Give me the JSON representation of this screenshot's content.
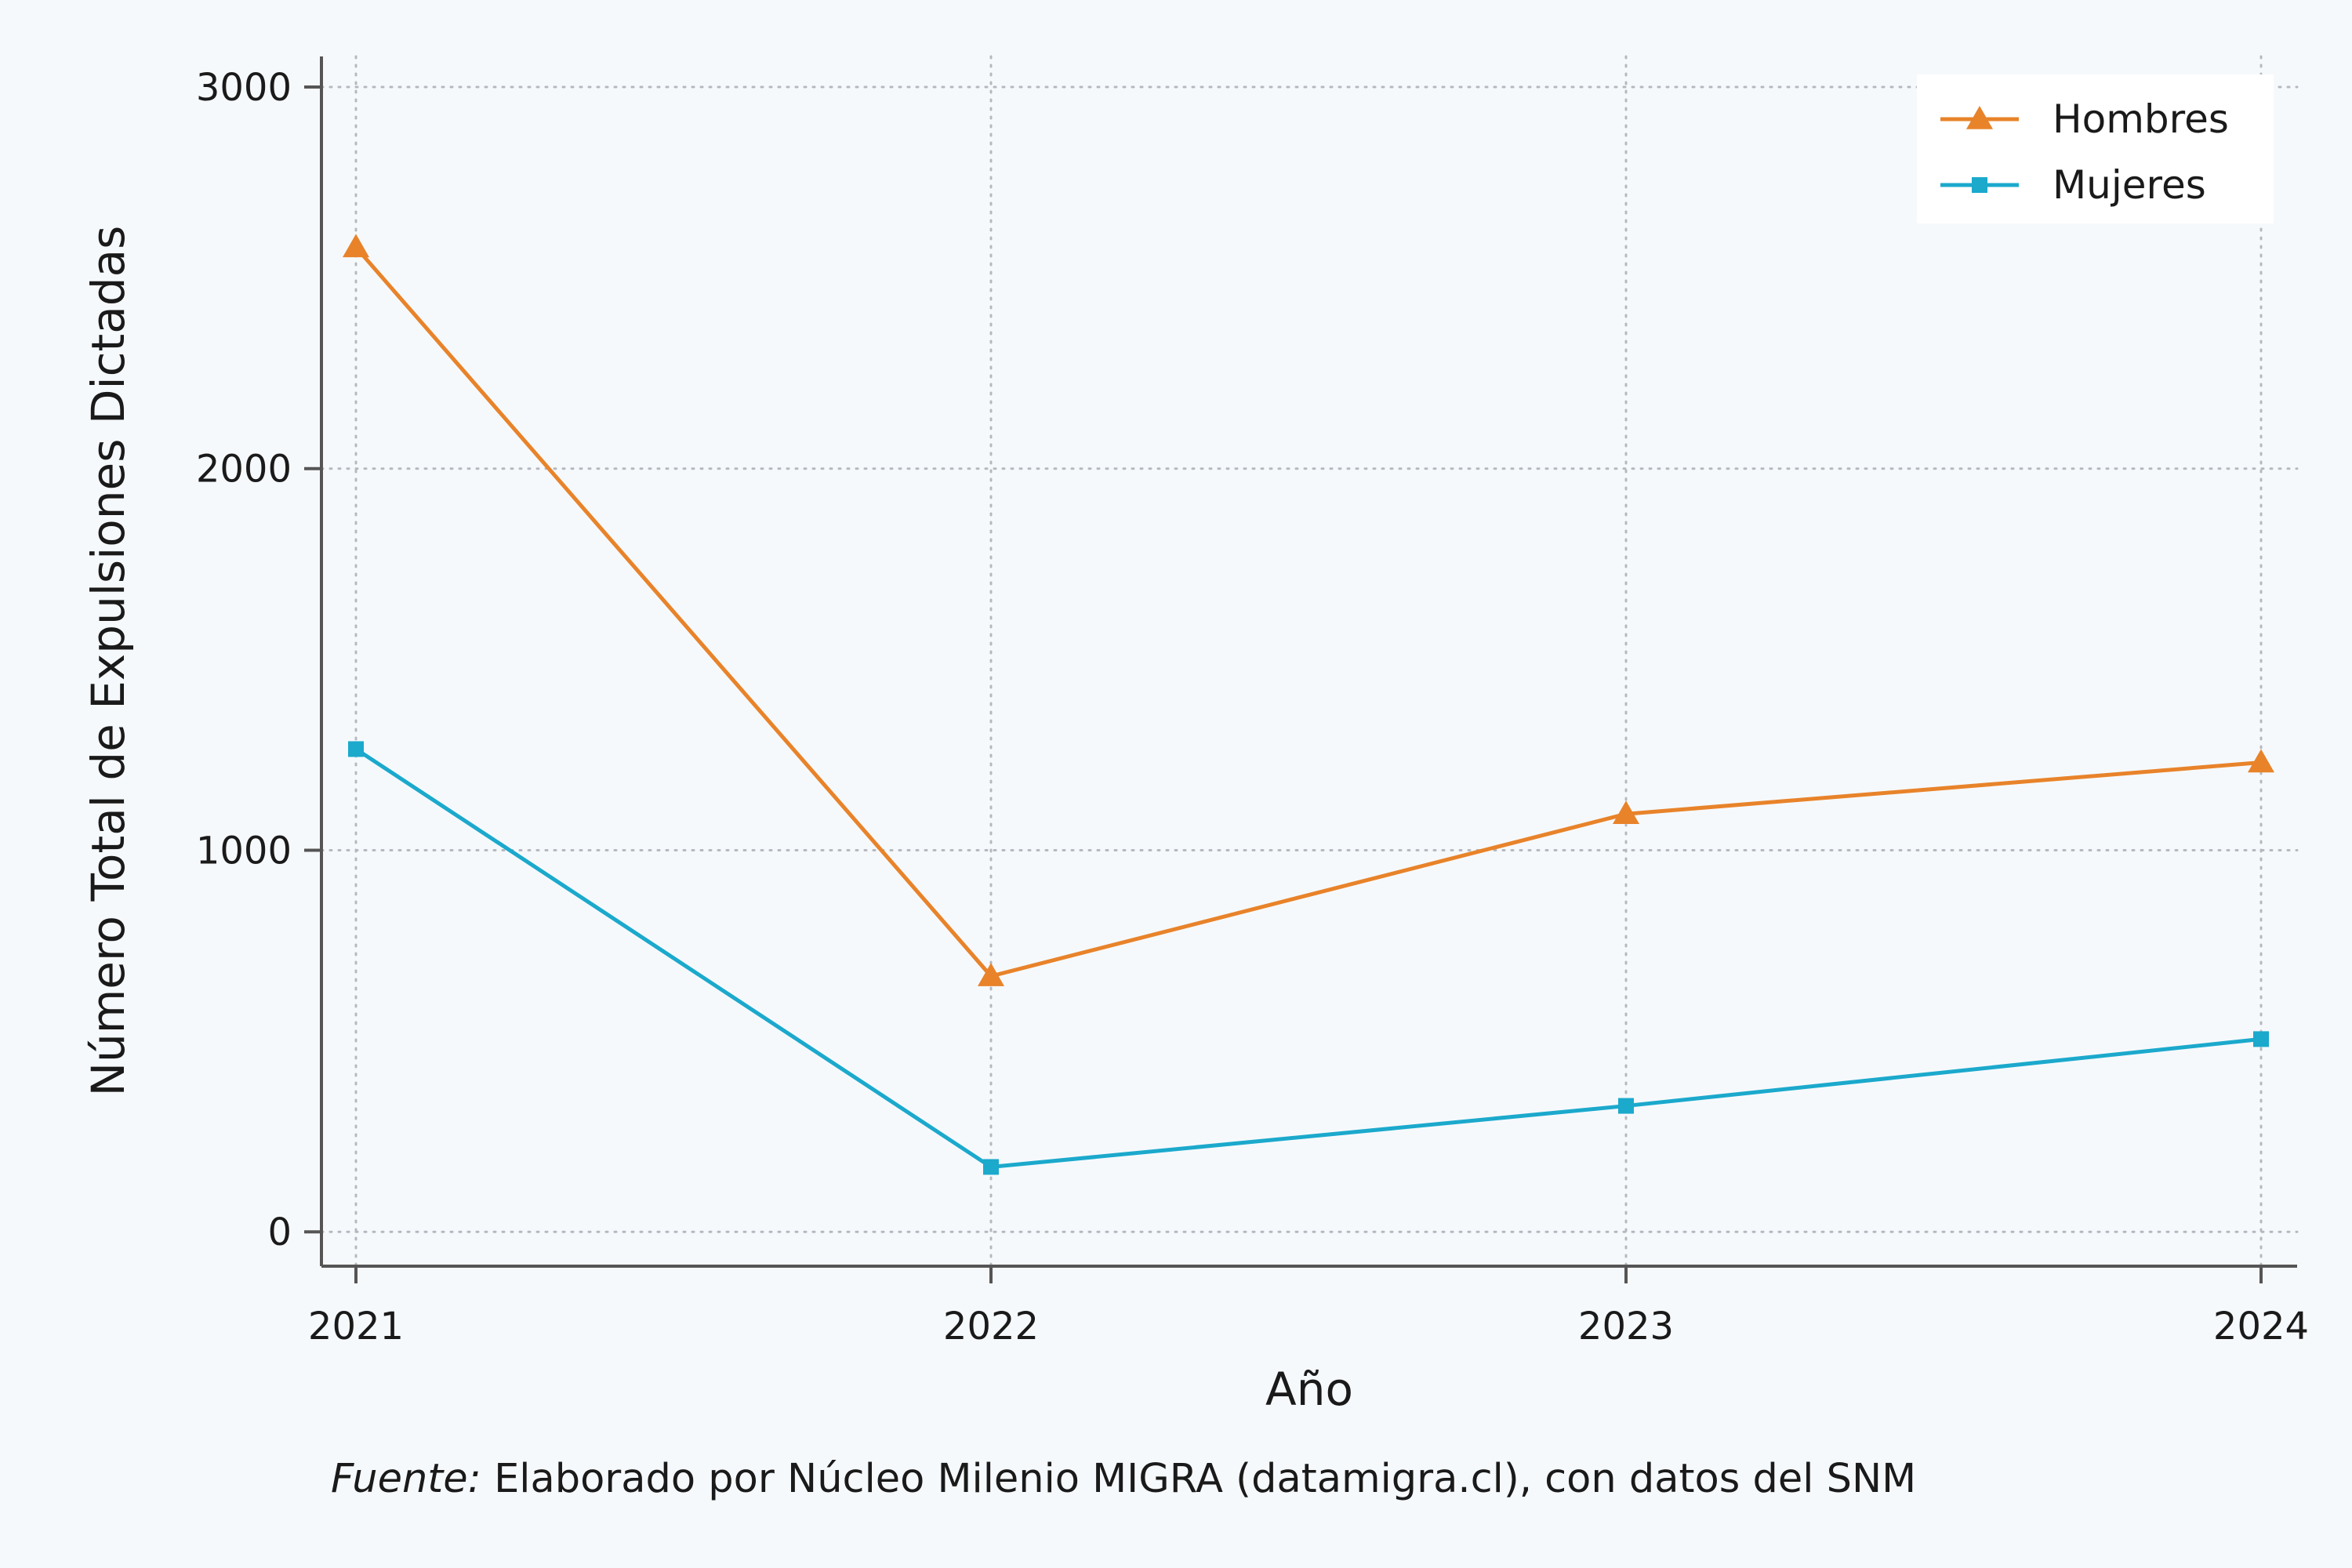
{
  "chart_data": {
    "type": "line",
    "title": "",
    "xlabel": "Año",
    "ylabel": "Número Total de Expulsiones Dictadas",
    "categories": [
      "2021",
      "2022",
      "2023",
      "2024"
    ],
    "series": [
      {
        "name": "Hombres",
        "values": [
          2580,
          670,
          1095,
          1230
        ],
        "color": "#e8832a",
        "marker": "triangle"
      },
      {
        "name": "Mujeres",
        "values": [
          1265,
          170,
          330,
          505
        ],
        "color": "#1ba9cc",
        "marker": "square"
      }
    ],
    "ylim": [
      -90,
      3080
    ],
    "yticks": [
      "0",
      "1000",
      "2000",
      "3000"
    ],
    "grid": true,
    "grid_style": "dotted",
    "legend_position": "top-right"
  },
  "caption": {
    "source_label": "Fuente:",
    "source_text": " Elaborado por Núcleo Milenio MIGRA (datamigra.cl), con datos del SNM"
  }
}
